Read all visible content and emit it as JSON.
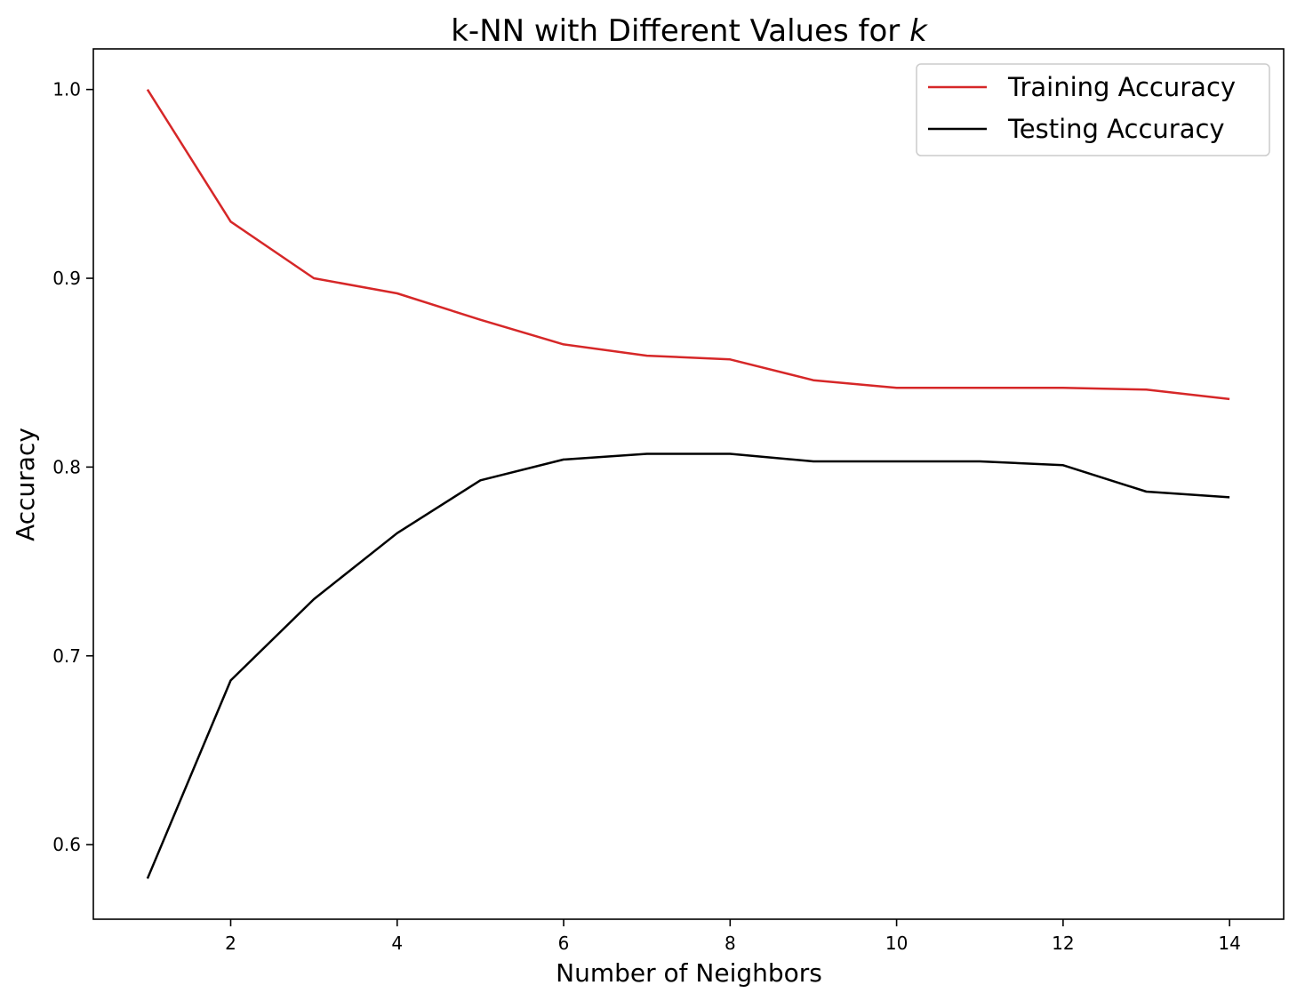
{
  "chart_data": {
    "type": "line",
    "title_main": "k-NN with Different Values for ",
    "title_italic": "k",
    "xlabel": "Number of Neighbors",
    "ylabel": "Accuracy",
    "x": [
      1,
      2,
      3,
      4,
      5,
      6,
      7,
      8,
      9,
      10,
      11,
      12,
      13,
      14
    ],
    "xlim": [
      0.35,
      14.65
    ],
    "ylim": [
      0.5605,
      1.0215
    ],
    "xticks": [
      2,
      4,
      6,
      8,
      10,
      12,
      14
    ],
    "yticks": [
      0.6,
      0.7,
      0.8,
      0.9,
      1.0
    ],
    "ytick_labels": [
      "0.6",
      "0.7",
      "0.8",
      "0.9",
      "1.0"
    ],
    "grid": false,
    "legend_position": "top-right",
    "series": [
      {
        "name": "Training Accuracy",
        "color": "#d62728",
        "values": [
          1.0,
          0.93,
          0.9,
          0.892,
          0.878,
          0.865,
          0.859,
          0.857,
          0.846,
          0.842,
          0.842,
          0.842,
          0.841,
          0.836
        ]
      },
      {
        "name": "Testing Accuracy",
        "color": "#000000",
        "values": [
          0.582,
          0.687,
          0.73,
          0.765,
          0.793,
          0.804,
          0.807,
          0.807,
          0.803,
          0.803,
          0.803,
          0.801,
          0.787,
          0.784
        ]
      }
    ]
  }
}
